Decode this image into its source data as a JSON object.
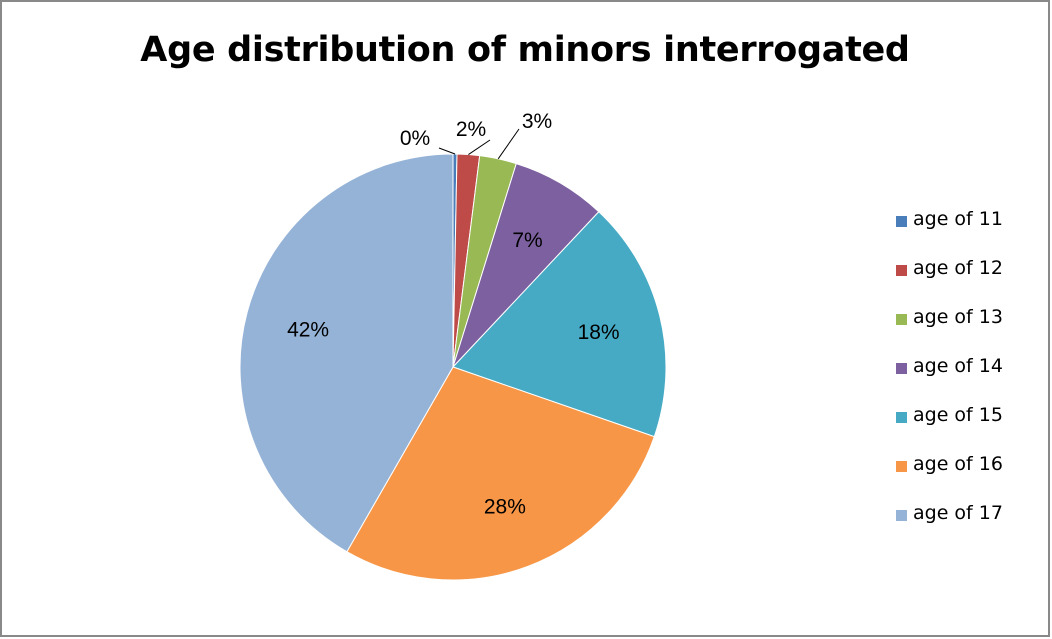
{
  "chart_data": {
    "type": "pie",
    "title": "Age distribution of minors interrogated",
    "categories": [
      "age of 11",
      "age of 12",
      "age of 13",
      "age of 14",
      "age of 15",
      "age of 16",
      "age of 17"
    ],
    "values": [
      0.3,
      1.7,
      2.8,
      7.2,
      18.3,
      28.0,
      41.7
    ],
    "data_labels": [
      "0%",
      "2%",
      "3%",
      "7%",
      "18%",
      "28%",
      "42%"
    ],
    "colors": [
      "#4a7ebb",
      "#be4b48",
      "#98b954",
      "#7d60a0",
      "#46aac5",
      "#f79646",
      "#95b3d7"
    ],
    "legend_position": "right",
    "start_angle_deg": 0,
    "direction": "clockwise"
  }
}
